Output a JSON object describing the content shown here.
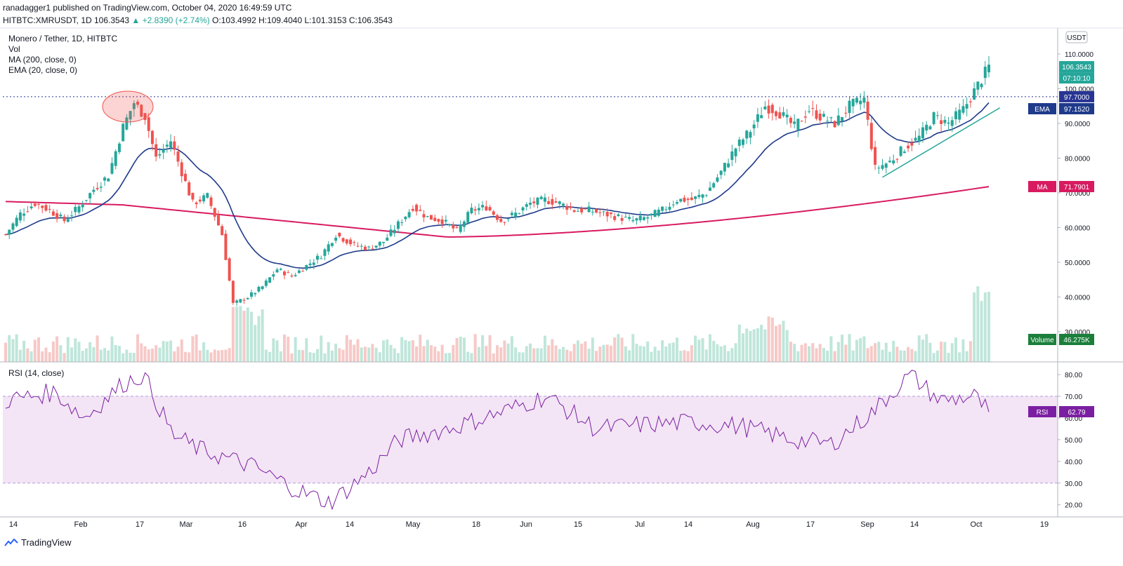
{
  "header": {
    "line1": "ranadagger1 published on TradingView.com, October 04, 2020 16:49:59 UTC",
    "symbol_info": "HITBTC:XMRUSDT, 1D  106.3543 ",
    "change": "▲ +2.8390 (+2.74%)",
    "ohlc": " O:103.4992  H:109.4040  L:101.3153  C:106.3543"
  },
  "legend": {
    "title": "Monero / Tether, 1D, HITBTC",
    "vol": "Vol",
    "ma": "MA (200, close, 0)",
    "ema": "EMA (20, close, 0)",
    "rsi": "RSI (14, close)"
  },
  "price_axis": {
    "currency": "USDT",
    "ticks": [
      "110.0000",
      "100.0000",
      "90.0000",
      "80.0000",
      "70.0000",
      "60.0000",
      "50.0000",
      "40.0000",
      "30.0000"
    ],
    "tick_values": [
      110,
      100,
      90,
      80,
      70,
      60,
      50,
      40,
      30
    ]
  },
  "rsi_axis": {
    "ticks": [
      "80.00",
      "70.00",
      "60.00",
      "50.00",
      "40.00",
      "30.00",
      "20.00"
    ],
    "tick_values": [
      80,
      70,
      60,
      50,
      40,
      30,
      20
    ]
  },
  "badges": {
    "price": "106.3543",
    "countdown": "07:10:10",
    "level": "97.7000",
    "ema_label": "EMA",
    "ema_value": "97.1520",
    "ma_label": "MA",
    "ma_value": "71.7901",
    "volume_label": "Volume",
    "volume_value": "46.275K",
    "rsi_label": "RSI",
    "rsi_value": "62.79"
  },
  "time_axis": [
    "14",
    "Feb",
    "17",
    "Mar",
    "16",
    "Apr",
    "14",
    "May",
    "18",
    "Jun",
    "15",
    "Jul",
    "14",
    "Aug",
    "17",
    "Sep",
    "14",
    "Oct",
    "19"
  ],
  "footer": {
    "brand": "TradingView"
  },
  "colors": {
    "up": "#26a69a",
    "down": "#ef5350",
    "ema": "#1e3a8a",
    "ma": "#d81b60",
    "rsi": "#7b1fa2",
    "rsi_band": "#f3e5f5",
    "level": "#283593",
    "trend": "#26a69a"
  },
  "chart_data": {
    "type": "candlestick",
    "title": "Monero / Tether, 1D, HITBTC",
    "ylabel": "USDT",
    "ylim": [
      25,
      115
    ],
    "horizontal_level": 97.7,
    "close_series": [
      {
        "date": "2020-01-10",
        "close": 58
      },
      {
        "date": "2020-01-14",
        "close": 64
      },
      {
        "date": "2020-01-18",
        "close": 67
      },
      {
        "date": "2020-01-22",
        "close": 65
      },
      {
        "date": "2020-01-26",
        "close": 62
      },
      {
        "date": "2020-01-30",
        "close": 66
      },
      {
        "date": "2020-02-03",
        "close": 71
      },
      {
        "date": "2020-02-07",
        "close": 75
      },
      {
        "date": "2020-02-11",
        "close": 89
      },
      {
        "date": "2020-02-14",
        "close": 96
      },
      {
        "date": "2020-02-17",
        "close": 92
      },
      {
        "date": "2020-02-20",
        "close": 80
      },
      {
        "date": "2020-02-24",
        "close": 85
      },
      {
        "date": "2020-02-27",
        "close": 76
      },
      {
        "date": "2020-03-01",
        "close": 67
      },
      {
        "date": "2020-03-05",
        "close": 69
      },
      {
        "date": "2020-03-09",
        "close": 58
      },
      {
        "date": "2020-03-12",
        "close": 38
      },
      {
        "date": "2020-03-16",
        "close": 40
      },
      {
        "date": "2020-03-20",
        "close": 43
      },
      {
        "date": "2020-03-24",
        "close": 48
      },
      {
        "date": "2020-03-28",
        "close": 46
      },
      {
        "date": "2020-04-01",
        "close": 49
      },
      {
        "date": "2020-04-05",
        "close": 52
      },
      {
        "date": "2020-04-09",
        "close": 58
      },
      {
        "date": "2020-04-14",
        "close": 55
      },
      {
        "date": "2020-04-18",
        "close": 54
      },
      {
        "date": "2020-04-22",
        "close": 56
      },
      {
        "date": "2020-04-26",
        "close": 61
      },
      {
        "date": "2020-04-30",
        "close": 66
      },
      {
        "date": "2020-05-04",
        "close": 63
      },
      {
        "date": "2020-05-08",
        "close": 62
      },
      {
        "date": "2020-05-12",
        "close": 59
      },
      {
        "date": "2020-05-16",
        "close": 65
      },
      {
        "date": "2020-05-20",
        "close": 66
      },
      {
        "date": "2020-05-24",
        "close": 62
      },
      {
        "date": "2020-05-28",
        "close": 64
      },
      {
        "date": "2020-06-01",
        "close": 67
      },
      {
        "date": "2020-06-05",
        "close": 68
      },
      {
        "date": "2020-06-09",
        "close": 67
      },
      {
        "date": "2020-06-13",
        "close": 65
      },
      {
        "date": "2020-06-17",
        "close": 65
      },
      {
        "date": "2020-06-21",
        "close": 64
      },
      {
        "date": "2020-06-25",
        "close": 63
      },
      {
        "date": "2020-06-29",
        "close": 62
      },
      {
        "date": "2020-07-03",
        "close": 63
      },
      {
        "date": "2020-07-07",
        "close": 65
      },
      {
        "date": "2020-07-11",
        "close": 68
      },
      {
        "date": "2020-07-15",
        "close": 68
      },
      {
        "date": "2020-07-19",
        "close": 70
      },
      {
        "date": "2020-07-23",
        "close": 76
      },
      {
        "date": "2020-07-27",
        "close": 83
      },
      {
        "date": "2020-07-31",
        "close": 88
      },
      {
        "date": "2020-08-04",
        "close": 95
      },
      {
        "date": "2020-08-08",
        "close": 93
      },
      {
        "date": "2020-08-12",
        "close": 89
      },
      {
        "date": "2020-08-16",
        "close": 94
      },
      {
        "date": "2020-08-19",
        "close": 92
      },
      {
        "date": "2020-08-23",
        "close": 90
      },
      {
        "date": "2020-08-27",
        "close": 95
      },
      {
        "date": "2020-08-31",
        "close": 97
      },
      {
        "date": "2020-09-03",
        "close": 77
      },
      {
        "date": "2020-09-07",
        "close": 79
      },
      {
        "date": "2020-09-11",
        "close": 83
      },
      {
        "date": "2020-09-15",
        "close": 86
      },
      {
        "date": "2020-09-19",
        "close": 92
      },
      {
        "date": "2020-09-23",
        "close": 90
      },
      {
        "date": "2020-09-27",
        "close": 94
      },
      {
        "date": "2020-10-01",
        "close": 101
      },
      {
        "date": "2020-10-04",
        "close": 106.3543
      }
    ]
  }
}
